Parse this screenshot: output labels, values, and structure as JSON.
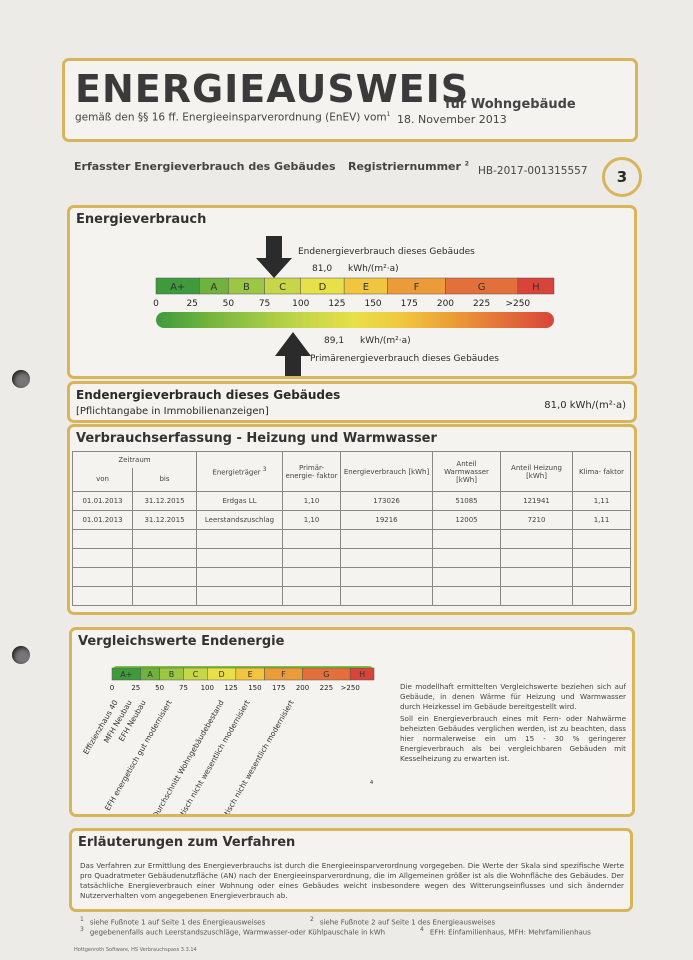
{
  "header": {
    "title": "ENERGIEAUSWEIS",
    "subtitle": "für Wohngebäude",
    "legal": "gemäß den §§ 16 ff. Energieeinsparverordnung (EnEV) vom",
    "legal_note": "1",
    "date": "18. November 2013"
  },
  "info": {
    "consumption_label": "Erfasster Energieverbrauch des Gebäudes",
    "reg_label": "Registriernummer",
    "reg_note": "2",
    "reg_number": "HB-2017-001315557",
    "page": "3"
  },
  "consumption": {
    "title": "Energieverbrauch",
    "final_label": "Endenergieverbrauch dieses Gebäudes",
    "final_value": "81,0",
    "final_unit": "kWh/(m²·a)",
    "primary_value": "89,1",
    "primary_unit": "kWh/(m²·a)",
    "primary_label": "Primärenergieverbrauch dieses Gebäudes",
    "classes": [
      "A+",
      "A",
      "B",
      "C",
      "D",
      "E",
      "F",
      "G",
      "H"
    ],
    "scale": [
      "0",
      "25",
      "50",
      "75",
      "100",
      "125",
      "150",
      "175",
      "200",
      "225",
      ">250"
    ]
  },
  "final_energy": {
    "title": "Endenergieverbrauch dieses Gebäudes",
    "note": "[Pflichtangabe in Immobilienanzeigen]",
    "value": "81,0 kWh/(m²·a)"
  },
  "recording": {
    "title": "Verbrauchserfassung - Heizung und Warmwasser",
    "period": "Zeitraum",
    "headers": [
      "von",
      "bis",
      "Energieträger",
      "Primär- energie- faktor",
      "Energieverbrauch [kWh]",
      "Anteil Warmwasser [kWh]",
      "Anteil Heizung [kWh]",
      "Klima- faktor"
    ],
    "carrier_note": "3",
    "rows": [
      [
        "01.01.2013",
        "31.12.2015",
        "Erdgas LL",
        "1,10",
        "173026",
        "51085",
        "121941",
        "1,11"
      ],
      [
        "01.01.2013",
        "31.12.2015",
        "Leerstandszuschlag",
        "1,10",
        "19216",
        "12005",
        "7210",
        "1,11"
      ]
    ]
  },
  "comparison": {
    "title": "Vergleichswerte Endenergie",
    "classes": [
      "A+",
      "A",
      "B",
      "C",
      "D",
      "E",
      "F",
      "G",
      "H"
    ],
    "scale": [
      "0",
      "25",
      "50",
      "75",
      "100",
      "125",
      "150",
      "175",
      "200",
      "225",
      ">250"
    ],
    "references": [
      "Effizienzhaus 40",
      "MFH Neubau",
      "EFH Neubau",
      "EFH energetisch gut modernisiert",
      "Durchschnitt Wohngebäudebestand",
      "MFH energetisch nicht wesentlich modernisiert",
      "EFH energetisch nicht wesentlich modernisiert"
    ],
    "note": "4",
    "text": [
      "Die modellhaft ermittelten Vergleichswerte beziehen sich auf Gebäude, in denen Wärme für Heizung und Warmwasser durch Heizkessel im Gebäude bereitgestellt wird.",
      "Soll ein Energieverbrauch eines mit Fern- oder Nahwärme beheizten Gebäudes verglichen werden, ist zu beachten, dass hier normalerweise ein um 15 - 30 % geringerer Energieverbrauch als bei vergleichbaren Gebäuden mit Kesselheizung zu erwarten ist."
    ]
  },
  "explanation": {
    "title": "Erläuterungen zum Verfahren",
    "text": "Das Verfahren zur Ermittlung des Energieverbrauchs ist durch die Energieeinsparverordnung vorgegeben. Die Werte der Skala sind spezifische Werte pro Quadratmeter Gebäudenutzfläche (AN) nach der Energieeinsparverordnung, die im Allgemeinen größer ist als die Wohnfläche des Gebäudes. Der tatsächliche Energieverbrauch einer Wohnung oder eines Gebäudes weicht insbesondere wegen des Witterungseinflusses und sich ändernder Nutzerverhalten vom angegebenen Energieverbrauch ab."
  },
  "footnotes": [
    {
      "mark": "1",
      "text": "siehe Fußnote 1 auf Seite 1 des Energieausweises"
    },
    {
      "mark": "2",
      "text": "siehe Fußnote 2 auf Seite 1 des Energieausweises"
    },
    {
      "mark": "3",
      "text": "gegebenenfalls auch Leerstandszuschläge, Warmwasser-oder Kühlpauschale in kWh"
    },
    {
      "mark": "4",
      "text": "EFH: Einfamilienhaus, MFH: Mehrfamilienhaus"
    }
  ],
  "software": "Hottgenroth Software, HS Verbrauchspass 3.3.14"
}
